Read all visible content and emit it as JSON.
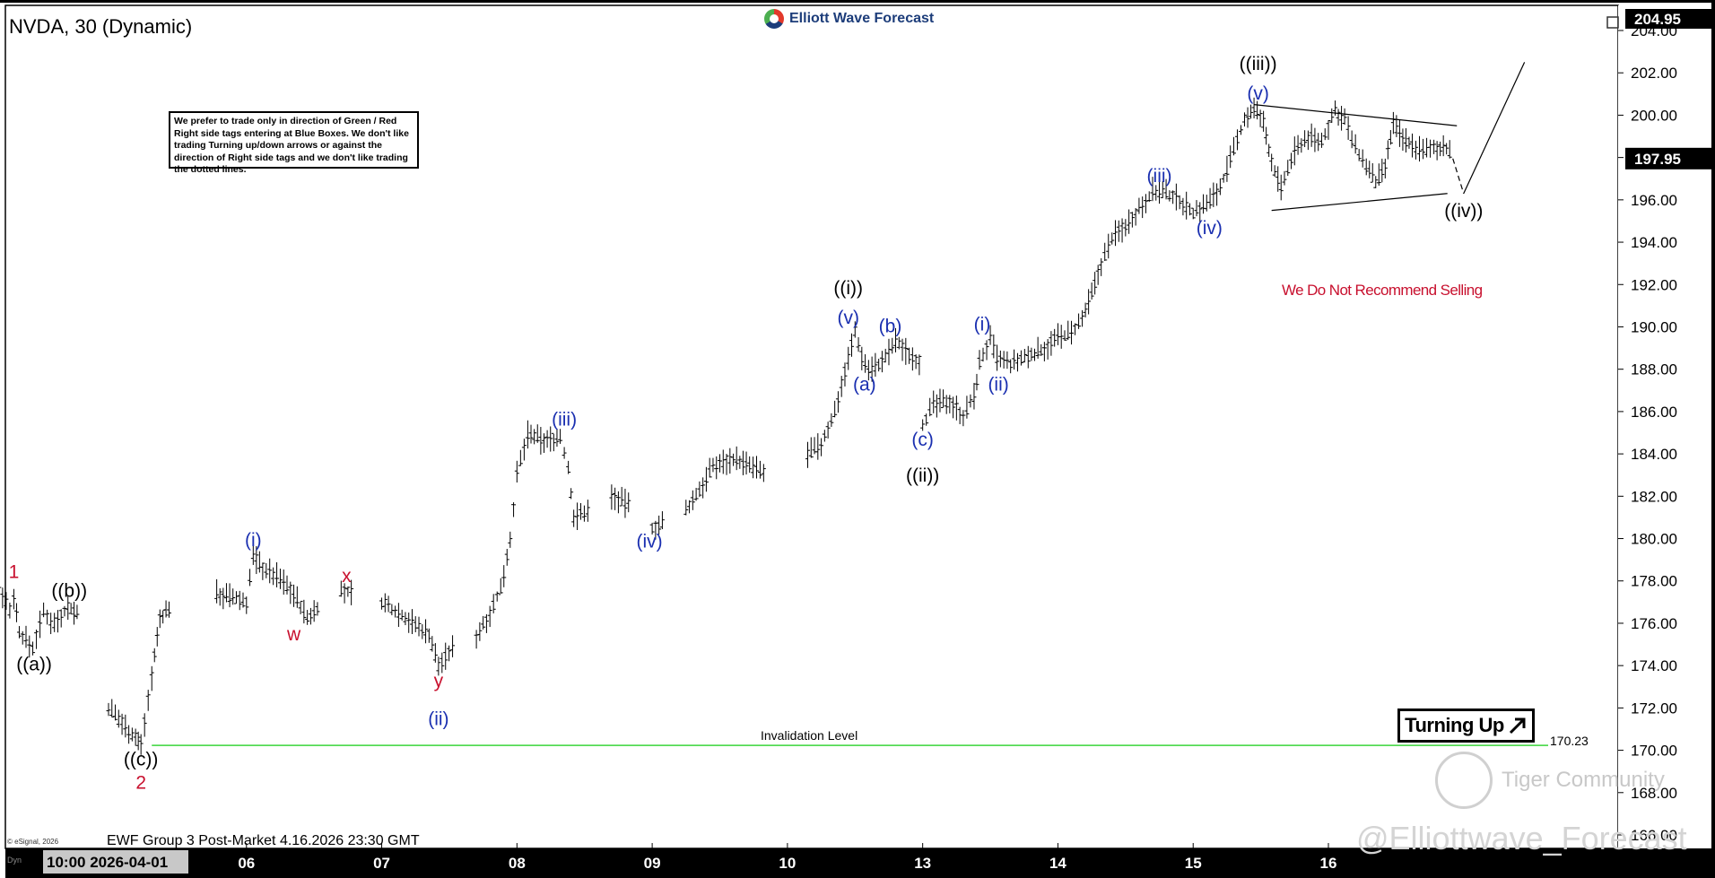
{
  "header": {
    "symbol_title": "NVDA, 30 (Dynamic)",
    "logo_text": "Elliott Wave Forecast",
    "footer_text": "EWF Group 3 Post-Market 4.16.2026 23:30 GMT",
    "copyright": "© eSignal, 2026",
    "corner_label": "Dyn",
    "date_badge": "10:00 2026-04-01"
  },
  "note_box": {
    "text": "We prefer to trade only in direction of Green / Red Right side tags entering at Blue Boxes. We don't like trading Turning up/down arrows or against the direction of Right side tags and we don't like trading the dotted lines."
  },
  "annotations": {
    "invalidation_label": "Invalidation Level",
    "invalidation_value": "170.23",
    "recommendation": "We Do Not Recommend Selling",
    "turning_up": "Turning Up",
    "watermark_community": "Tiger Community",
    "watermark_handle": "@Elliottwave_Forecast"
  },
  "colors": {
    "wave_black": "#000000",
    "wave_blue": "#1a2fb0",
    "wave_red": "#c8102e",
    "invalidation_line": "#39d43a",
    "price_bars": "#000000"
  },
  "chart_data": {
    "type": "ohlc",
    "title": "NVDA, 30 (Dynamic)",
    "timeframe": "30 min",
    "ylim": [
      165,
      204.95
    ],
    "y_ticks": [
      166,
      168,
      170,
      172,
      174,
      176,
      178,
      180,
      182,
      184,
      186,
      188,
      190,
      192,
      194,
      196,
      198,
      200,
      202,
      204
    ],
    "y_tick_labels": [
      "166.00",
      "168.00",
      "170.00",
      "172.00",
      "174.00",
      "176.00",
      "178.00",
      "180.00",
      "182.00",
      "184.00",
      "186.00",
      "188.00",
      "190.00",
      "192.00",
      "194.00",
      "196.00",
      "198.00",
      "200.00",
      "202.00",
      "204.00"
    ],
    "y_top_label": "204.95",
    "x_day_labels": [
      "06",
      "07",
      "08",
      "09",
      "10",
      "13",
      "14",
      "15",
      "16"
    ],
    "x_day_positions": [
      2,
      3,
      4,
      5,
      6,
      7,
      8,
      9,
      10
    ],
    "x_range": [
      0,
      10.95
    ],
    "current_price": 197.95,
    "current_price_label": "197.95",
    "invalidation_level": 170.23,
    "price_path": [
      [
        0.0,
        177.0
      ],
      [
        0.08,
        175.2
      ],
      [
        0.17,
        177.8
      ],
      [
        0.25,
        176.6
      ],
      [
        0.28,
        177.3
      ],
      [
        0.32,
        175.6
      ],
      [
        0.42,
        174.8
      ],
      [
        0.5,
        176.5
      ],
      [
        0.58,
        176.0
      ],
      [
        0.68,
        176.8
      ],
      [
        0.77,
        176.3
      ],
      [
        0.98,
        172.0
      ],
      [
        1.08,
        171.3
      ],
      [
        1.18,
        170.6
      ],
      [
        1.22,
        170.23
      ],
      [
        1.3,
        173.5
      ],
      [
        1.36,
        176.2
      ],
      [
        1.45,
        176.9
      ],
      [
        1.6,
        177.0
      ],
      [
        1.78,
        177.4
      ],
      [
        1.9,
        177.2
      ],
      [
        2.0,
        177.0
      ],
      [
        2.05,
        179.2
      ],
      [
        2.12,
        178.6
      ],
      [
        2.25,
        178.1
      ],
      [
        2.35,
        177.4
      ],
      [
        2.45,
        176.2
      ],
      [
        2.55,
        177.0
      ],
      [
        2.7,
        177.5
      ],
      [
        2.8,
        177.4
      ],
      [
        3.0,
        177.0
      ],
      [
        3.15,
        176.4
      ],
      [
        3.25,
        175.9
      ],
      [
        3.35,
        175.5
      ],
      [
        3.42,
        174.0
      ],
      [
        3.55,
        175.0
      ],
      [
        3.7,
        175.4
      ],
      [
        3.8,
        176.5
      ],
      [
        3.88,
        177.6
      ],
      [
        3.95,
        180.0
      ],
      [
        4.0,
        183.0
      ],
      [
        4.08,
        184.9
      ],
      [
        4.2,
        184.6
      ],
      [
        4.32,
        184.8
      ],
      [
        4.38,
        183.3
      ],
      [
        4.42,
        181.0
      ],
      [
        4.55,
        181.4
      ],
      [
        4.7,
        182.0
      ],
      [
        4.85,
        181.5
      ],
      [
        5.0,
        180.5
      ],
      [
        5.1,
        180.8
      ],
      [
        5.25,
        181.3
      ],
      [
        5.35,
        182.3
      ],
      [
        5.45,
        183.4
      ],
      [
        5.6,
        183.8
      ],
      [
        5.72,
        183.4
      ],
      [
        5.85,
        183.0
      ],
      [
        6.0,
        183.2
      ],
      [
        6.15,
        184.0
      ],
      [
        6.25,
        184.4
      ],
      [
        6.35,
        186.0
      ],
      [
        6.45,
        188.5
      ],
      [
        6.5,
        189.8
      ],
      [
        6.55,
        188.6
      ],
      [
        6.6,
        188.0
      ],
      [
        6.7,
        188.3
      ],
      [
        6.8,
        189.3
      ],
      [
        6.9,
        188.7
      ],
      [
        7.0,
        188.3
      ],
      [
        7.0,
        185.4
      ],
      [
        7.08,
        186.3
      ],
      [
        7.2,
        186.5
      ],
      [
        7.3,
        185.8
      ],
      [
        7.38,
        186.7
      ],
      [
        7.42,
        188.3
      ],
      [
        7.5,
        189.4
      ],
      [
        7.55,
        188.5
      ],
      [
        7.65,
        188.2
      ],
      [
        7.78,
        188.6
      ],
      [
        7.9,
        189.0
      ],
      [
        8.0,
        189.5
      ],
      [
        8.1,
        189.7
      ],
      [
        8.18,
        190.3
      ],
      [
        8.25,
        191.5
      ],
      [
        8.32,
        193.0
      ],
      [
        8.4,
        194.2
      ],
      [
        8.5,
        194.8
      ],
      [
        8.6,
        195.6
      ],
      [
        8.7,
        196.4
      ],
      [
        8.8,
        196.3
      ],
      [
        8.9,
        196.0
      ],
      [
        9.0,
        195.4
      ],
      [
        9.1,
        195.8
      ],
      [
        9.2,
        196.6
      ],
      [
        9.3,
        198.3
      ],
      [
        9.38,
        199.8
      ],
      [
        9.45,
        200.3
      ],
      [
        9.52,
        199.6
      ],
      [
        9.58,
        197.8
      ],
      [
        9.65,
        196.5
      ],
      [
        9.75,
        198.3
      ],
      [
        9.85,
        199.0
      ],
      [
        9.95,
        198.7
      ],
      [
        10.0,
        199.5
      ],
      [
        10.05,
        200.2
      ],
      [
        10.12,
        199.8
      ],
      [
        10.2,
        198.4
      ],
      [
        10.28,
        197.6
      ],
      [
        10.35,
        196.8
      ],
      [
        10.42,
        197.5
      ],
      [
        10.48,
        199.6
      ],
      [
        10.55,
        198.9
      ],
      [
        10.62,
        198.6
      ],
      [
        10.7,
        198.3
      ],
      [
        10.78,
        198.4
      ],
      [
        10.85,
        198.6
      ],
      [
        10.92,
        197.95
      ]
    ],
    "triangle_upper": [
      [
        9.45,
        200.5
      ],
      [
        10.95,
        199.5
      ]
    ],
    "triangle_lower": [
      [
        9.58,
        195.5
      ],
      [
        10.88,
        196.3
      ]
    ],
    "projection_dashed": [
      [
        10.92,
        197.95
      ],
      [
        11.0,
        196.3
      ]
    ],
    "projection_solid": [
      [
        11.0,
        196.3
      ],
      [
        11.45,
        202.5
      ]
    ],
    "wave_labels": [
      {
        "text": "1",
        "x": 0.28,
        "y": 177.8,
        "color": "red",
        "pos": "above"
      },
      {
        "text": "((a))",
        "x": 0.43,
        "y": 174.8,
        "color": "black",
        "pos": "below"
      },
      {
        "text": "((b))",
        "x": 0.69,
        "y": 176.9,
        "color": "black",
        "pos": "above"
      },
      {
        "text": "((c))",
        "x": 1.22,
        "y": 170.3,
        "color": "black",
        "pos": "below"
      },
      {
        "text": "2",
        "x": 1.22,
        "y": 169.2,
        "color": "red",
        "pos": "below"
      },
      {
        "text": "(i)",
        "x": 2.05,
        "y": 179.3,
        "color": "blue",
        "pos": "above"
      },
      {
        "text": "w",
        "x": 2.35,
        "y": 176.2,
        "color": "red",
        "pos": "below"
      },
      {
        "text": "x",
        "x": 2.74,
        "y": 177.6,
        "color": "red",
        "pos": "above"
      },
      {
        "text": "y",
        "x": 3.42,
        "y": 174.0,
        "color": "red",
        "pos": "below"
      },
      {
        "text": "(ii)",
        "x": 3.42,
        "y": 172.2,
        "color": "blue",
        "pos": "below"
      },
      {
        "text": "(iii)",
        "x": 4.35,
        "y": 185.0,
        "color": "blue",
        "pos": "above"
      },
      {
        "text": "(iv)",
        "x": 4.98,
        "y": 180.6,
        "color": "blue",
        "pos": "below"
      },
      {
        "text": "((i))",
        "x": 6.45,
        "y": 191.2,
        "color": "black",
        "pos": "above"
      },
      {
        "text": "(v)",
        "x": 6.45,
        "y": 189.8,
        "color": "blue",
        "pos": "above"
      },
      {
        "text": "(a)",
        "x": 6.57,
        "y": 188.0,
        "color": "blue",
        "pos": "below"
      },
      {
        "text": "(b)",
        "x": 6.76,
        "y": 189.4,
        "color": "blue",
        "pos": "above"
      },
      {
        "text": "(c)",
        "x": 7.0,
        "y": 185.4,
        "color": "blue",
        "pos": "below"
      },
      {
        "text": "((ii))",
        "x": 7.0,
        "y": 183.7,
        "color": "black",
        "pos": "below"
      },
      {
        "text": "(i)",
        "x": 7.44,
        "y": 189.5,
        "color": "blue",
        "pos": "above"
      },
      {
        "text": "(ii)",
        "x": 7.56,
        "y": 188.0,
        "color": "blue",
        "pos": "below"
      },
      {
        "text": "(iii)",
        "x": 8.75,
        "y": 196.5,
        "color": "blue",
        "pos": "above"
      },
      {
        "text": "(iv)",
        "x": 9.12,
        "y": 195.4,
        "color": "blue",
        "pos": "below"
      },
      {
        "text": "(v)",
        "x": 9.48,
        "y": 200.4,
        "color": "blue",
        "pos": "above"
      },
      {
        "text": "((iii))",
        "x": 9.48,
        "y": 201.8,
        "color": "black",
        "pos": "above"
      },
      {
        "text": "((iv))",
        "x": 11.0,
        "y": 196.2,
        "color": "black",
        "pos": "below"
      }
    ]
  }
}
